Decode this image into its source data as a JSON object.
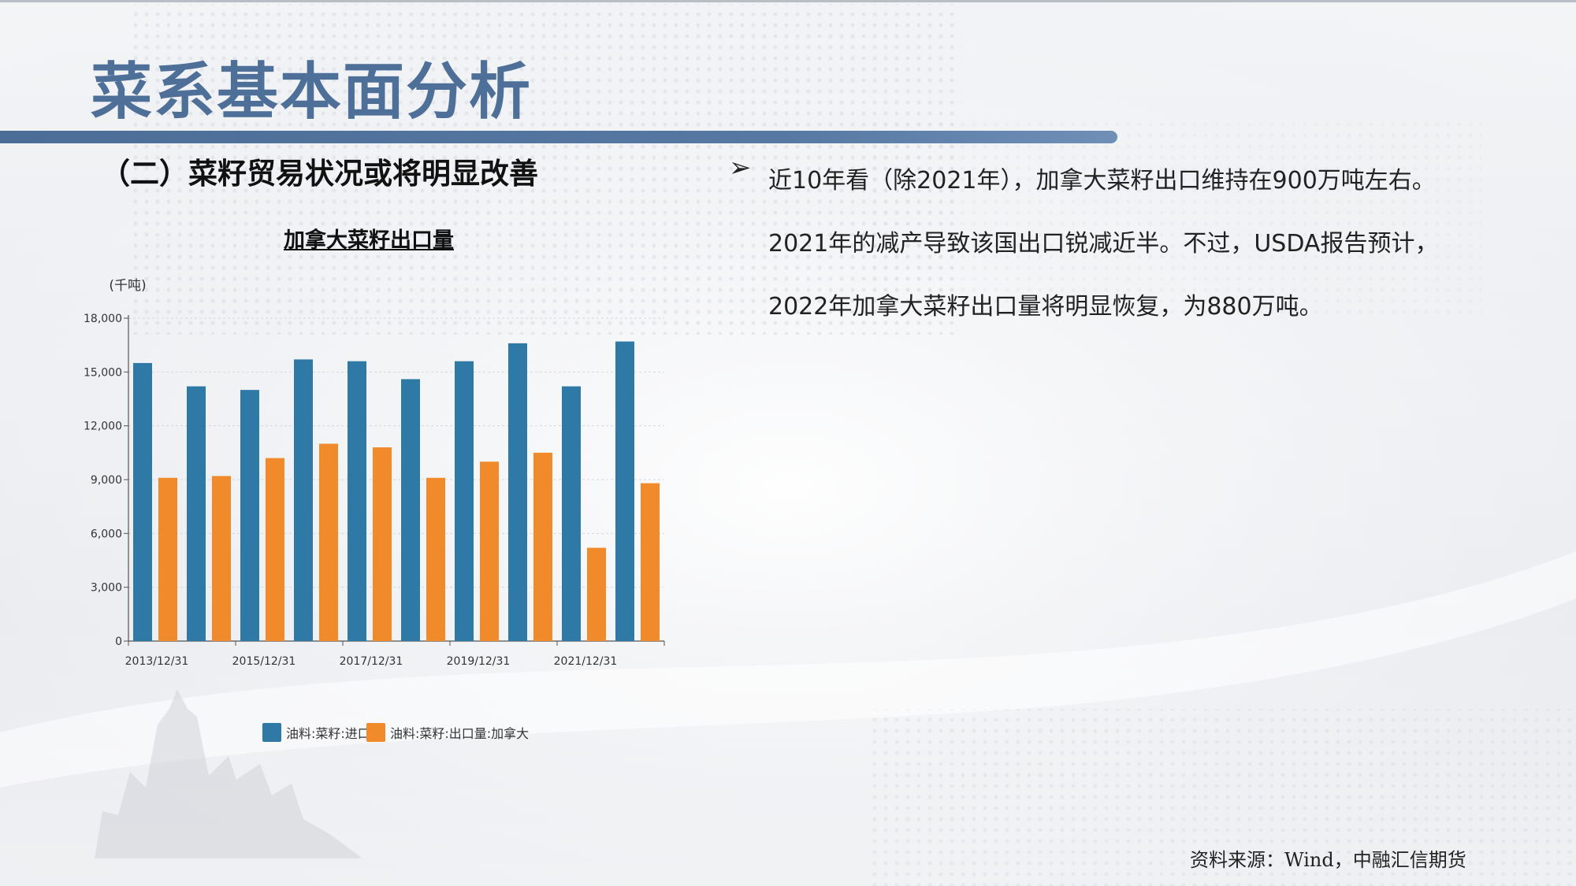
{
  "page": {
    "title": "菜系基本面分析",
    "subtitle": "（二）菜籽贸易状况或将明显改善"
  },
  "content": {
    "bullet_symbol": "➢",
    "paragraph_lines": [
      "近10年看（除2021年），加拿大菜籽出口维持在900万吨左右。",
      "2021年的减产导致该国出口锐减近半。不过，USDA报告预计，",
      "2022年加拿大菜籽出口量将明显恢复，为880万吨。"
    ],
    "source": "资料来源：Wind，中融汇信期货"
  },
  "chart_data": {
    "type": "bar",
    "title": "加拿大菜籽出口量",
    "ylabel": "(千吨)",
    "ylim": [
      0,
      18000
    ],
    "yticks": [
      0,
      3000,
      6000,
      9000,
      12000,
      15000,
      18000
    ],
    "ytick_labels": [
      "0",
      "3,000",
      "6,000",
      "9,000",
      "12,000",
      "15,000",
      "18,000"
    ],
    "categories": [
      "2013/12/31",
      "2014/12/31",
      "2015/12/31",
      "2016/12/31",
      "2017/12/31",
      "2018/12/31",
      "2019/12/31",
      "2020/12/31",
      "2021/12/31",
      "2022/12/31"
    ],
    "xtick_labels": [
      "2013/12/31",
      "",
      "2015/12/31",
      "",
      "2017/12/31",
      "",
      "2019/12/31",
      "",
      "2021/12/31",
      ""
    ],
    "series": [
      {
        "name": "油料:菜籽:进口量",
        "color": "#2f79a6",
        "values": [
          15500,
          14200,
          14000,
          15700,
          15600,
          14600,
          15600,
          16600,
          14200,
          16700
        ]
      },
      {
        "name": "油料:菜籽:出口量:加拿大",
        "color": "#f08a2a",
        "values": [
          9100,
          9200,
          10200,
          11000,
          10800,
          9100,
          10000,
          10500,
          5200,
          8800
        ]
      }
    ],
    "legend": "bottom",
    "grid": true
  },
  "colors": {
    "title": "#4e6f98",
    "title_bar": "#4b6d96"
  }
}
